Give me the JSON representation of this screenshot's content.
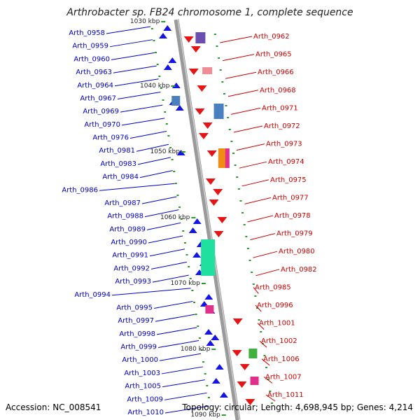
{
  "title": "Arthrobacter sp. FB24 chromosome 1, complete sequence",
  "footer": {
    "accession": "Accession: NC_008541",
    "stats": "Topology: circular; Length: 4,698,945 bp; Genes: 4,214"
  },
  "colors": {
    "backbone": "#999999",
    "forward_gene": "#1414e6",
    "reverse_gene": "#e61414",
    "tick": "#2a9a2a",
    "left_label": "#0000cc",
    "right_label": "#cc0000"
  },
  "kbp_markers": [
    "1030 kbp",
    "1040 kbp",
    "1050 kbp",
    "1060 kbp",
    "1070 kbp",
    "1080 kbp",
    "1090 kbp"
  ],
  "left_genes": [
    "Arth_0958",
    "Arth_0959",
    "Arth_0960",
    "Arth_0963",
    "Arth_0964",
    "Arth_0967",
    "Arth_0969",
    "Arth_0970",
    "Arth_0976",
    "Arth_0981",
    "Arth_0983",
    "Arth_0984",
    "Arth_0986",
    "Arth_0987",
    "Arth_0988",
    "Arth_0989",
    "Arth_0990",
    "Arth_0991",
    "Arth_0992",
    "Arth_0993",
    "Arth_0994",
    "Arth_0995",
    "Arth_0997",
    "Arth_0998",
    "Arth_0999",
    "Arth_1000",
    "Arth_1003",
    "Arth_1005",
    "Arth_1009",
    "Arth_1010"
  ],
  "right_genes": [
    "Arth_0962",
    "Arth_0965",
    "Arth_0966",
    "Arth_0968",
    "Arth_0971",
    "Arth_0972",
    "Arth_0973",
    "Arth_0974",
    "Arth_0975",
    "Arth_0977",
    "Arth_0978",
    "Arth_0979",
    "Arth_0980",
    "Arth_0982",
    "Arth_0985",
    "Arth_0996",
    "Arth_1001",
    "Arth_1002",
    "Arth_1006",
    "Arth_1007",
    "Arth_1011"
  ]
}
